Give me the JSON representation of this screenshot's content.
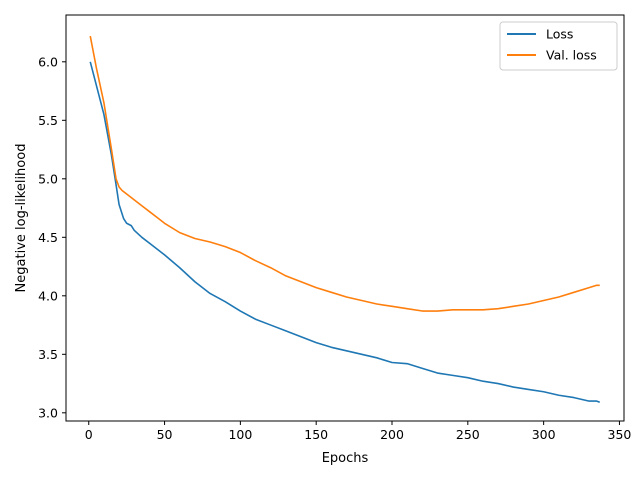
{
  "chart_data": {
    "type": "line",
    "title": "",
    "xlabel": "Epochs",
    "ylabel": "Negative log-likelihood",
    "xlim": [
      -15,
      353
    ],
    "ylim": [
      2.93,
      6.4
    ],
    "xticks": [
      0,
      50,
      100,
      150,
      200,
      250,
      300,
      350
    ],
    "xtick_labels": [
      "0",
      "50",
      "100",
      "150",
      "200",
      "250",
      "300",
      "350"
    ],
    "yticks": [
      3.0,
      3.5,
      4.0,
      4.5,
      5.0,
      5.5,
      6.0
    ],
    "ytick_labels": [
      "3.0",
      "3.5",
      "4.0",
      "4.5",
      "5.0",
      "5.5",
      "6.0"
    ],
    "grid": false,
    "legend_position": "upper right",
    "series": [
      {
        "name": "Loss",
        "color": "#1f77b4",
        "x": [
          1,
          5,
          10,
          15,
          18,
          20,
          23,
          25,
          28,
          30,
          35,
          40,
          45,
          50,
          60,
          70,
          80,
          90,
          100,
          110,
          120,
          130,
          140,
          150,
          160,
          170,
          180,
          190,
          200,
          210,
          220,
          230,
          240,
          250,
          260,
          270,
          280,
          290,
          300,
          310,
          320,
          330,
          335,
          337
        ],
        "y": [
          6.0,
          5.8,
          5.55,
          5.2,
          4.95,
          4.78,
          4.66,
          4.62,
          4.6,
          4.56,
          4.5,
          4.45,
          4.4,
          4.35,
          4.24,
          4.12,
          4.02,
          3.95,
          3.87,
          3.8,
          3.75,
          3.7,
          3.65,
          3.6,
          3.56,
          3.53,
          3.5,
          3.47,
          3.43,
          3.42,
          3.38,
          3.34,
          3.32,
          3.3,
          3.27,
          3.25,
          3.22,
          3.2,
          3.18,
          3.15,
          3.13,
          3.1,
          3.1,
          3.09
        ]
      },
      {
        "name": "Val. loss",
        "color": "#ff7f0e",
        "x": [
          1,
          5,
          10,
          15,
          18,
          20,
          22,
          25,
          30,
          35,
          40,
          45,
          50,
          60,
          70,
          80,
          90,
          100,
          110,
          120,
          130,
          140,
          150,
          160,
          170,
          180,
          190,
          200,
          210,
          220,
          230,
          240,
          250,
          260,
          270,
          280,
          290,
          300,
          310,
          320,
          330,
          335,
          337
        ],
        "y": [
          6.22,
          5.95,
          5.65,
          5.25,
          5.0,
          4.93,
          4.9,
          4.87,
          4.82,
          4.77,
          4.72,
          4.67,
          4.62,
          4.54,
          4.49,
          4.46,
          4.42,
          4.37,
          4.3,
          4.24,
          4.17,
          4.12,
          4.07,
          4.03,
          3.99,
          3.96,
          3.93,
          3.91,
          3.89,
          3.87,
          3.87,
          3.88,
          3.88,
          3.88,
          3.89,
          3.91,
          3.93,
          3.96,
          3.99,
          4.03,
          4.07,
          4.09,
          4.09
        ]
      }
    ]
  }
}
